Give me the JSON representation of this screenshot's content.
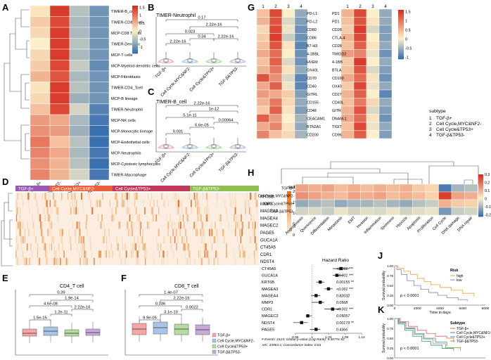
{
  "panel_labels": [
    "A",
    "B",
    "C",
    "D",
    "E",
    "F",
    "G",
    "H",
    "I",
    "J",
    "K"
  ],
  "subtypes": {
    "title": "subtype",
    "numbers": [
      "1",
      "2",
      "3",
      "4"
    ],
    "names": [
      "TGF-β+",
      "Cell Cycle,MYC&NF2-",
      "Cell Cycle&TP53+",
      "TGF-β&TP53-"
    ],
    "colors": [
      "#9b59b6",
      "#e8603c",
      "#c0395a",
      "#8fbf50"
    ]
  },
  "colors": {
    "high": "#d7301f",
    "mid": "#fdf0c8",
    "low": "#3a6fb0",
    "grid": "#ffffff"
  },
  "panel_a": {
    "x_labels": [
      "TGF-β+",
      "Cell Cycle,MYC&NF2-",
      "Cell Cycle&TP53+",
      "TGF-β&TP53-"
    ],
    "rows": [
      "TIMER-B_cell",
      "TIMER-CD8_Tcell",
      "MCP-CD8 T cells",
      "TIMER-Dendritic",
      "MCP-T cells",
      "MCP-Myeloid dendritic cells",
      "MCP-Fibroblasts",
      "TIMER-CD4_Tcell",
      "MCP-B lineage",
      "TIMER-Neutrophil",
      "MCP-NK cells",
      "MCP-Monocytic lineage",
      "MCP-Endothelial cells",
      "MCP-Neutrophils",
      "MCP-Cytotoxic lymphocytes",
      "TIMER-Macrophage"
    ],
    "values": [
      [
        0.1,
        1.5,
        -0.5,
        -1.0
      ],
      [
        0.3,
        1.4,
        -0.6,
        -1.0
      ],
      [
        0.2,
        1.5,
        -0.6,
        -1.0
      ],
      [
        0.0,
        1.5,
        -0.5,
        -1.0
      ],
      [
        0.2,
        1.5,
        -0.6,
        -1.0
      ],
      [
        0.3,
        1.4,
        -0.4,
        -1.1
      ],
      [
        0.5,
        1.3,
        -0.6,
        -1.0
      ],
      [
        0.1,
        1.5,
        -0.5,
        -1.0
      ],
      [
        0.2,
        1.5,
        -0.7,
        -1.0
      ],
      [
        0.4,
        1.4,
        -0.3,
        -1.2
      ],
      [
        0.7,
        0.6,
        -0.6,
        -1.3
      ],
      [
        0.8,
        0.7,
        -0.7,
        -1.4
      ],
      [
        1.0,
        0.4,
        -0.5,
        -1.4
      ],
      [
        0.9,
        0.6,
        -0.6,
        -1.3
      ],
      [
        0.8,
        0.5,
        -0.5,
        -1.4
      ],
      [
        0.9,
        0.5,
        -0.3,
        -1.3
      ]
    ],
    "legend_ticks": [
      "1.5",
      "1",
      "0.5",
      "0",
      "-0.5",
      "-1"
    ]
  },
  "panel_b": {
    "title": "TIMER-Neutrophil",
    "pvalues": [
      "0.17",
      "2.22e-16",
      "0.023",
      "2.22e-16",
      "0.34",
      "2.22e-16"
    ],
    "x_labels": [
      "TGF-β+",
      "Cell Cycle,MYC&NF2-",
      "Cell Cycle&TP53+",
      "TGF-β&TP53-"
    ]
  },
  "panel_c": {
    "title": "TIMER-B_cell",
    "pvalues": [
      "2.22e-16",
      "1e-12",
      "5.1e-11",
      "0.00064",
      "6.6e-05",
      "0.031"
    ],
    "x_labels": [
      "TGF-β+",
      "Cell Cycle,MYC&NF2-",
      "Cell Cycle&TP53+",
      "TGF-β&TP53-"
    ]
  },
  "panel_d": {
    "legend_title": "subtype",
    "genes": [
      "KRT6B",
      "MMP3",
      "MAGEA3",
      "MAGEA4",
      "MAGEC2",
      "PAGE5",
      "GUCA1A",
      "CT45A5",
      "CDR1",
      "NDST4"
    ],
    "legend_ticks": [
      "20",
      "15",
      "10",
      "5",
      "0"
    ]
  },
  "panel_e": {
    "title": "CD4_T cell",
    "pvalues": [
      "0.39",
      "1.9e-14",
      "4.6e-08",
      "2.22e-16",
      "1.2e-11",
      "1.5e-15"
    ],
    "box_colors": [
      "#f4a6a6",
      "#a8c4e8",
      "#b5dba0",
      "#c9a8dc"
    ]
  },
  "panel_f": {
    "title": "CD8_T cell",
    "pvalues": [
      "1.4e-07",
      "2.22e-16",
      "0.036",
      "0.0022",
      "3.1e-10",
      "9.9e-05"
    ],
    "legend": [
      "TGF-β+",
      "Cell Cycle,MYC&NF2-",
      "Cell Cycle&TP53+",
      "TGF-β&TP53-"
    ]
  },
  "panel_g": {
    "col_numbers": [
      "1",
      "2",
      "3",
      "4"
    ],
    "left_labels": [
      "PD-L1",
      "PD-L2",
      "CD80",
      "CD86",
      "B7-H3",
      "4-1BBL",
      "HVEM",
      "OX40L",
      "CD70",
      "CD40",
      "GITRL",
      "CD155",
      "CD48",
      "CEACAM1",
      "BTN2A1",
      "CD200"
    ],
    "left_values": [
      [
        0.4,
        1.4,
        0.0,
        -0.6
      ],
      [
        0.5,
        1.3,
        -0.2,
        -0.7
      ],
      [
        0.2,
        1.4,
        -0.1,
        -0.8
      ],
      [
        0.3,
        1.5,
        -0.3,
        -0.8
      ],
      [
        0.4,
        1.3,
        0.1,
        -0.9
      ],
      [
        0.6,
        1.1,
        0.0,
        -0.8
      ],
      [
        0.4,
        1.2,
        -0.2,
        -0.8
      ],
      [
        0.5,
        1.0,
        0.1,
        -0.6
      ],
      [
        1.3,
        0.8,
        -0.2,
        -0.9
      ],
      [
        0.6,
        1.2,
        -0.1,
        -0.9
      ],
      [
        0.7,
        0.6,
        0.3,
        -0.7
      ],
      [
        0.5,
        1.0,
        0.2,
        -0.6
      ],
      [
        0.3,
        1.2,
        0.1,
        -0.7
      ],
      [
        1.2,
        0.7,
        0.0,
        -0.5
      ],
      [
        0.6,
        0.9,
        0.1,
        -0.6
      ],
      [
        0.9,
        0.4,
        0.2,
        -0.5
      ]
    ],
    "right_labels": [
      "PD1",
      "PD1",
      "CD28",
      "CTLA-4",
      "CD28",
      "TMIGD2",
      "4-1BB",
      "BTLA",
      "CD160",
      "OX40",
      "CD27",
      "CD40L",
      "GITR",
      "DNAM-1",
      "TIGIT",
      "CD96",
      "2B4",
      "CEACAM1",
      "DC-SIGN",
      "CD200R"
    ],
    "right_values": [
      [
        0.5,
        1.4,
        0.0,
        -0.6
      ],
      [
        0.4,
        1.3,
        0.1,
        -0.6
      ],
      [
        0.3,
        1.5,
        -0.2,
        -0.7
      ],
      [
        0.5,
        1.4,
        0.0,
        -0.7
      ],
      [
        0.4,
        1.2,
        0.1,
        -0.6
      ],
      [
        0.7,
        0.9,
        -0.1,
        -0.8
      ],
      [
        0.3,
        1.5,
        0.0,
        -0.6
      ],
      [
        0.4,
        1.3,
        -0.2,
        -0.7
      ],
      [
        0.6,
        1.1,
        0.1,
        -0.8
      ],
      [
        0.3,
        1.4,
        -0.1,
        -0.6
      ],
      [
        0.5,
        1.2,
        0.0,
        -0.9
      ],
      [
        0.4,
        1.0,
        0.2,
        -0.6
      ],
      [
        0.5,
        1.3,
        -0.2,
        -0.7
      ],
      [
        0.6,
        1.1,
        0.1,
        -0.8
      ],
      [
        0.4,
        1.4,
        -0.1,
        -0.6
      ],
      [
        0.5,
        1.2,
        0.0,
        -0.7
      ],
      [
        0.6,
        1.0,
        0.1,
        -0.7
      ],
      [
        1.1,
        0.7,
        0.0,
        -0.5
      ],
      [
        0.7,
        0.9,
        0.2,
        -0.6
      ],
      [
        0.5,
        1.1,
        0.1,
        -0.7
      ]
    ],
    "legend_ticks": [
      "1.5",
      "1",
      "0.5",
      "0",
      "-0.5",
      "-1"
    ]
  },
  "panel_h": {
    "rows": [
      "TGF-β+",
      "Cell Cycle,MYC&NF2-",
      "Cell Cycle&TP53+",
      "TGF-β&TP53-"
    ],
    "columns": [
      "Angiogenesis",
      "Quiescence",
      "Differentiation",
      "Metastasis",
      "EMT",
      "Invasion",
      "Inflammation",
      "Stemness",
      "Hypoxia",
      "Apoptosis",
      "Proliferation",
      "Cell Cycle",
      "DNA damage",
      "DNA repair"
    ],
    "values": [
      [
        0.12,
        0.1,
        0.12,
        0.08,
        0.1,
        0.08,
        0.1,
        0.08,
        0.1,
        0.06,
        0.04,
        -0.2,
        -0.1,
        -0.08
      ],
      [
        0.15,
        0.12,
        0.1,
        0.08,
        0.12,
        0.1,
        0.12,
        0.08,
        0.1,
        0.08,
        0.05,
        0.28,
        0.12,
        0.1
      ],
      [
        -0.12,
        -0.1,
        -0.08,
        -0.12,
        -0.1,
        -0.1,
        -0.08,
        -0.1,
        -0.12,
        -0.08,
        -0.06,
        0.1,
        0.06,
        0.05
      ],
      [
        -0.05,
        -0.04,
        -0.06,
        -0.02,
        -0.05,
        -0.03,
        -0.04,
        -0.02,
        -0.05,
        -0.03,
        -0.02,
        -0.15,
        -0.06,
        -0.05
      ]
    ],
    "legend_ticks": [
      "0.3",
      "0.2",
      "0.1",
      "0",
      "-0.1",
      "-0.2"
    ]
  },
  "panel_i": {
    "title": "Hazard Ratio",
    "genes": [
      "CT45A5",
      "GUCA1A",
      "KRT6B",
      "MAGEA3",
      "MAGEA4",
      "MMP3",
      "CDR1",
      "MAGEC2",
      "NDST4",
      "PAGE5"
    ],
    "hr": [
      1.07,
      1.06,
      1.02,
      1.04,
      1.01,
      1.02,
      1.05,
      0.99,
      0.975,
      1.01
    ],
    "lo": [
      1.05,
      1.05,
      1.01,
      1.03,
      0.998,
      0.999,
      1.03,
      0.985,
      0.955,
      0.995
    ],
    "hi": [
      1.09,
      1.075,
      1.03,
      1.05,
      1.02,
      1.03,
      1.07,
      1.0,
      0.99,
      1.02
    ],
    "pvalues": [
      "<0.001 ***",
      "<0.001 ***",
      "0.00155 **",
      "<0.001 ***",
      "0.82032",
      "0.0568",
      "<0.001 ***",
      "0.05057",
      "0.00179 **",
      "0.4366"
    ],
    "axis_ticks": [
      "0.96",
      "1",
      "1.04",
      "1.08",
      "1.12"
    ],
    "axis_values": [
      0.96,
      1.0,
      1.04,
      1.08,
      1.12
    ],
    "footer1": "# Events: 2124; Global p-value (Log-Rank): 9.3077e-52",
    "footer2": "AIC: 33963.1; Concordance Index: 0.63"
  },
  "panel_j": {
    "legend_title": "Risk",
    "legend": [
      "high",
      "low"
    ],
    "ylabel": "Survival probability",
    "xlabel": "Time in days",
    "pvalue": "p < 0.0001",
    "x_ticks": [
      "0",
      "2000",
      "4000",
      "6000",
      "8000"
    ],
    "y_ticks": [
      "0.00",
      "0.25",
      "0.50",
      "0.75",
      "1.00"
    ]
  },
  "panel_k": {
    "legend_title": "Subtype",
    "legend": [
      "TGF-β+",
      "Cell Cycle,MYC&NF2-",
      "Cell Cycle&TP53+",
      "TGF-β&TP53-"
    ],
    "ylabel": "Survival probability",
    "xlabel": "Time in days",
    "pvalue": "p < 0.0001",
    "x_ticks": [
      "0",
      "2000",
      "4000",
      "6000",
      "8000"
    ],
    "y_ticks": [
      "0.00",
      "0.25",
      "0.50",
      "0.75",
      "1.00"
    ]
  }
}
